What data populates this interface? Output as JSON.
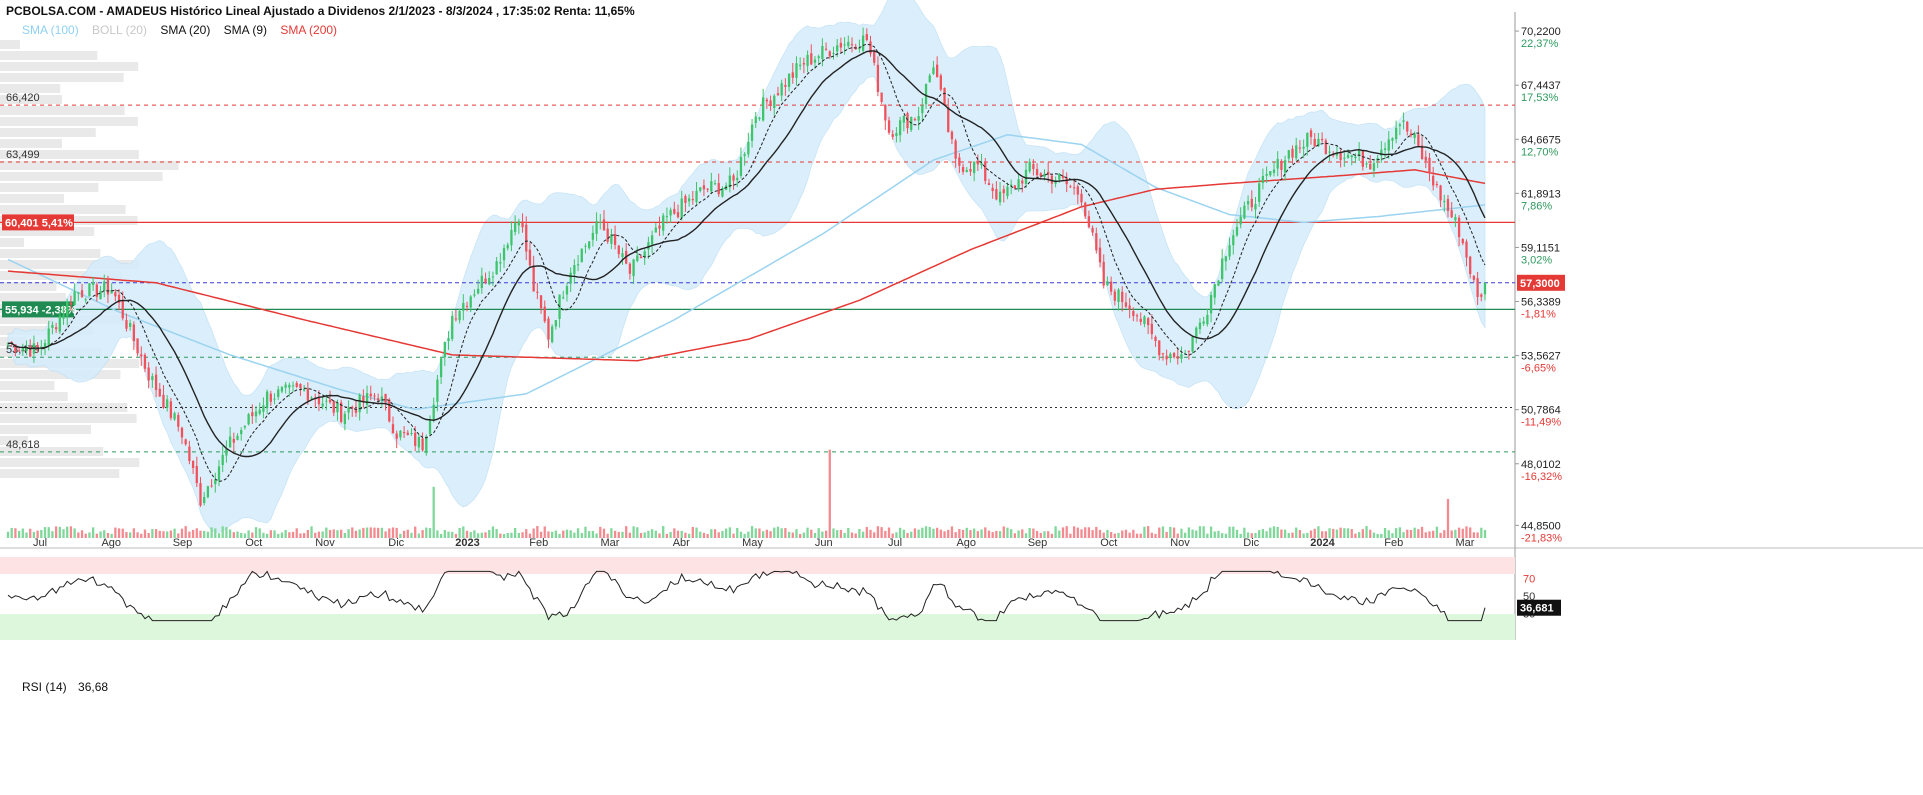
{
  "header": {
    "title": "PCBOLSA.COM - AMADEUS Histórico Lineal Ajustado a Dividenos 2/1/2023 - 8/3/2024 , 17:35:02 Renta: 11,65%"
  },
  "legend": [
    {
      "label": "SMA (100)",
      "color": "#8fd0f2"
    },
    {
      "label": "BOLL (20)",
      "color": "#c8c8c8"
    },
    {
      "label": "SMA (20)",
      "color": "#111111"
    },
    {
      "label": "SMA (9)",
      "color": "#111111"
    },
    {
      "label": "SMA (200)",
      "color": "#e53935"
    }
  ],
  "rsi": {
    "label": "RSI (14)",
    "value": "36,68",
    "current_tag": "36,681",
    "levels": [
      "70",
      "50",
      "30"
    ]
  },
  "colors": {
    "up": "#3ec46a",
    "down": "#f0515b",
    "sma20": "#222222",
    "sma9": "#222222",
    "sma100": "#9bd3f0",
    "sma200": "#e53935",
    "boll_fill": "#d5ecfb",
    "price_tag": "#e53935",
    "support_tag": "#1f8a52",
    "resistance_tag": "#e53935"
  },
  "chart_data": {
    "type": "candlestick",
    "instrument": "AMADEUS",
    "y_axis": {
      "range": [
        44.2,
        71.2
      ],
      "ticks": [
        {
          "value": 70.22,
          "label": "70,2200",
          "pct": "22,37%"
        },
        {
          "value": 67.4437,
          "label": "67,4437",
          "pct": "17,53%"
        },
        {
          "value": 64.6675,
          "label": "64,6675",
          "pct": "12,70%"
        },
        {
          "value": 61.8913,
          "label": "61,8913",
          "pct": "7,86%"
        },
        {
          "value": 59.1151,
          "label": "59,1151",
          "pct": "3,02%"
        },
        {
          "value": 56.3389,
          "label": "56,3389",
          "pct": "-1,81%"
        },
        {
          "value": 53.5627,
          "label": "53,5627",
          "pct": "-6,65%"
        },
        {
          "value": 50.7864,
          "label": "50,7864",
          "pct": "-11,49%"
        },
        {
          "value": 48.0102,
          "label": "48,0102",
          "pct": "-16,32%"
        },
        {
          "value": 44.85,
          "label": "44,8500",
          "pct": "-21,83%"
        }
      ]
    },
    "x_axis": {
      "months": [
        "Jul",
        "Ago",
        "Sep",
        "Oct",
        "Nov",
        "Dic",
        "2023",
        "Feb",
        "Mar",
        "Abr",
        "May",
        "Jun",
        "Jul",
        "Ago",
        "Sep",
        "Oct",
        "Nov",
        "Dic",
        "2024",
        "Feb",
        "Mar"
      ]
    },
    "current_price": {
      "value": 57.3,
      "label": "57,3000"
    },
    "levels": [
      {
        "value": 66.42,
        "label": "66,420",
        "style": "dashed-red"
      },
      {
        "value": 63.499,
        "label": "63,499",
        "style": "dashed-red"
      },
      {
        "value": 60.401,
        "label": "60,401",
        "pct": "5,41%",
        "style": "solid-red"
      },
      {
        "value": 55.934,
        "label": "55,934",
        "pct": "-2,38%",
        "style": "solid-green"
      },
      {
        "value": 53.479,
        "label": "53,479",
        "style": "dashed-green"
      },
      {
        "value": 50.9,
        "label": "",
        "style": "dotted-black"
      },
      {
        "value": 48.618,
        "label": "48,618",
        "style": "dashed-green"
      }
    ],
    "close_keypoints": [
      {
        "t": 0,
        "v": 54.2
      },
      {
        "t": 8,
        "v": 53.8
      },
      {
        "t": 18,
        "v": 56.8
      },
      {
        "t": 28,
        "v": 57.0
      },
      {
        "t": 38,
        "v": 52.6
      },
      {
        "t": 47,
        "v": 49.6
      },
      {
        "t": 52,
        "v": 46.2
      },
      {
        "t": 60,
        "v": 49.0
      },
      {
        "t": 70,
        "v": 51.5
      },
      {
        "t": 80,
        "v": 51.8
      },
      {
        "t": 90,
        "v": 50.6
      },
      {
        "t": 100,
        "v": 51.6
      },
      {
        "t": 105,
        "v": 49.6
      },
      {
        "t": 112,
        "v": 49.0
      },
      {
        "t": 120,
        "v": 55.6
      },
      {
        "t": 132,
        "v": 58.3
      },
      {
        "t": 138,
        "v": 60.9
      },
      {
        "t": 142,
        "v": 57.0
      },
      {
        "t": 146,
        "v": 54.6
      },
      {
        "t": 152,
        "v": 58.1
      },
      {
        "t": 160,
        "v": 60.4
      },
      {
        "t": 168,
        "v": 57.8
      },
      {
        "t": 178,
        "v": 60.6
      },
      {
        "t": 188,
        "v": 62.1
      },
      {
        "t": 196,
        "v": 62.4
      },
      {
        "t": 202,
        "v": 66.0
      },
      {
        "t": 215,
        "v": 68.6
      },
      {
        "t": 225,
        "v": 69.6
      },
      {
        "t": 232,
        "v": 69.8
      },
      {
        "t": 238,
        "v": 65.1
      },
      {
        "t": 246,
        "v": 66.0
      },
      {
        "t": 250,
        "v": 68.6
      },
      {
        "t": 256,
        "v": 63.4
      },
      {
        "t": 262,
        "v": 63.3
      },
      {
        "t": 268,
        "v": 61.6
      },
      {
        "t": 276,
        "v": 63.1
      },
      {
        "t": 284,
        "v": 62.6
      },
      {
        "t": 290,
        "v": 61.8
      },
      {
        "t": 296,
        "v": 57.2
      },
      {
        "t": 304,
        "v": 56.0
      },
      {
        "t": 312,
        "v": 53.7
      },
      {
        "t": 318,
        "v": 53.6
      },
      {
        "t": 324,
        "v": 56.1
      },
      {
        "t": 330,
        "v": 59.6
      },
      {
        "t": 338,
        "v": 62.1
      },
      {
        "t": 346,
        "v": 64.0
      },
      {
        "t": 352,
        "v": 64.7
      },
      {
        "t": 360,
        "v": 64.0
      },
      {
        "t": 368,
        "v": 63.5
      },
      {
        "t": 376,
        "v": 65.6
      },
      {
        "t": 380,
        "v": 64.6
      },
      {
        "t": 386,
        "v": 62.1
      },
      {
        "t": 392,
        "v": 60.0
      },
      {
        "t": 395,
        "v": 58.0
      },
      {
        "t": 397,
        "v": 56.4
      },
      {
        "t": 399,
        "v": 57.3
      }
    ],
    "sma100_keypoints": [
      {
        "t": 0,
        "v": 58.5
      },
      {
        "t": 30,
        "v": 55.8
      },
      {
        "t": 60,
        "v": 53.6
      },
      {
        "t": 90,
        "v": 51.8
      },
      {
        "t": 110,
        "v": 50.8
      },
      {
        "t": 140,
        "v": 51.6
      },
      {
        "t": 180,
        "v": 55.4
      },
      {
        "t": 220,
        "v": 59.8
      },
      {
        "t": 250,
        "v": 63.6
      },
      {
        "t": 270,
        "v": 64.9
      },
      {
        "t": 290,
        "v": 64.4
      },
      {
        "t": 310,
        "v": 62.2
      },
      {
        "t": 330,
        "v": 60.8
      },
      {
        "t": 350,
        "v": 60.4
      },
      {
        "t": 370,
        "v": 60.7
      },
      {
        "t": 399,
        "v": 61.3
      }
    ],
    "sma200_keypoints": [
      {
        "t": 0,
        "v": 57.9
      },
      {
        "t": 40,
        "v": 57.3
      },
      {
        "t": 80,
        "v": 55.4
      },
      {
        "t": 120,
        "v": 53.6
      },
      {
        "t": 170,
        "v": 53.3
      },
      {
        "t": 200,
        "v": 54.4
      },
      {
        "t": 230,
        "v": 56.4
      },
      {
        "t": 260,
        "v": 59.0
      },
      {
        "t": 290,
        "v": 61.2
      },
      {
        "t": 310,
        "v": 62.1
      },
      {
        "t": 330,
        "v": 62.4
      },
      {
        "t": 360,
        "v": 62.8
      },
      {
        "t": 380,
        "v": 63.1
      },
      {
        "t": 399,
        "v": 62.4
      }
    ],
    "volume_spikes": [
      {
        "t": 115,
        "h": 0.55
      },
      {
        "t": 222,
        "h": 0.95
      },
      {
        "t": 389,
        "h": 0.42
      }
    ],
    "rsi_range": [
      0,
      100
    ]
  }
}
